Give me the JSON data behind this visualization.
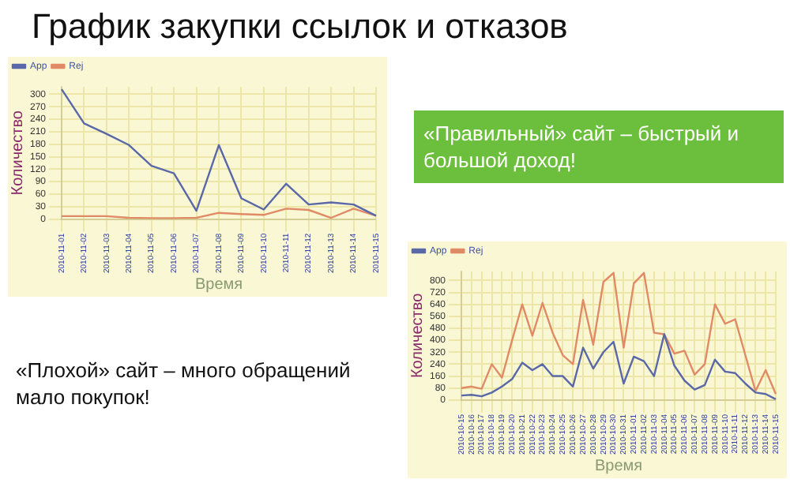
{
  "chart_data": [
    {
      "type": "line",
      "title": "График закупки ссылок и отказов",
      "xlabel": "Время",
      "ylabel": "Количество",
      "categories": [
        "2010-11-01",
        "2010-11-02",
        "2010-11-03",
        "2010-11-04",
        "2010-11-05",
        "2010-11-06",
        "2010-11-07",
        "2010-11-08",
        "2010-11-09",
        "2010-11-10",
        "2010-11-11",
        "2010-11-12",
        "2010-11-13",
        "2010-11-14",
        "2010-11-15"
      ],
      "series": [
        {
          "name": "App",
          "color": "#5a68a8",
          "values": [
            312,
            230,
            205,
            178,
            128,
            110,
            20,
            178,
            50,
            23,
            85,
            35,
            40,
            35,
            8
          ]
        },
        {
          "name": "Rej",
          "color": "#e08a66",
          "values": [
            7,
            7,
            7,
            3,
            2,
            2,
            3,
            15,
            12,
            10,
            25,
            22,
            3,
            25,
            8
          ]
        }
      ],
      "ylim": [
        0,
        318
      ],
      "yticks": [
        0,
        30,
        60,
        90,
        120,
        150,
        180,
        210,
        240,
        270,
        300
      ],
      "grid": true,
      "legend": "top left",
      "marker": "none",
      "annotations": [
        "«Плохой» сайт – много обращений мало покупок!"
      ]
    },
    {
      "type": "line",
      "xlabel": "Время",
      "ylabel": "Количество",
      "categories": [
        "2010-10-15",
        "2010-10-16",
        "2010-10-17",
        "2010-10-18",
        "2010-10-19",
        "2010-10-20",
        "2010-10-21",
        "2010-10-22",
        "2010-10-23",
        "2010-10-24",
        "2010-10-25",
        "2010-10-26",
        "2010-10-27",
        "2010-10-28",
        "2010-10-29",
        "2010-10-30",
        "2010-10-31",
        "2010-11-01",
        "2010-11-02",
        "2010-11-03",
        "2010-11-04",
        "2010-11-05",
        "2010-11-06",
        "2010-11-07",
        "2010-11-08",
        "2010-11-09",
        "2010-11-10",
        "2010-11-11",
        "2010-11-12",
        "2010-11-13",
        "2010-11-14",
        "2010-11-15"
      ],
      "series": [
        {
          "name": "App",
          "color": "#5a68a8",
          "values": [
            30,
            35,
            25,
            50,
            90,
            140,
            250,
            200,
            240,
            160,
            160,
            90,
            350,
            210,
            320,
            390,
            110,
            290,
            260,
            160,
            440,
            230,
            130,
            70,
            100,
            270,
            190,
            180,
            110,
            50,
            40,
            5
          ]
        },
        {
          "name": "Rej",
          "color": "#e08a66",
          "values": [
            80,
            90,
            75,
            240,
            150,
            400,
            640,
            430,
            650,
            450,
            300,
            240,
            670,
            370,
            790,
            850,
            350,
            780,
            850,
            450,
            440,
            310,
            330,
            170,
            240,
            640,
            510,
            540,
            300,
            60,
            200,
            40
          ]
        }
      ],
      "ylim": [
        0,
        860
      ],
      "yticks": [
        0,
        80,
        160,
        240,
        320,
        400,
        480,
        560,
        640,
        720,
        800
      ],
      "grid": true,
      "legend": "top left",
      "marker": "none",
      "annotations": [
        "«Правильный» сайт – быстрый и большой доход!"
      ]
    }
  ]
}
